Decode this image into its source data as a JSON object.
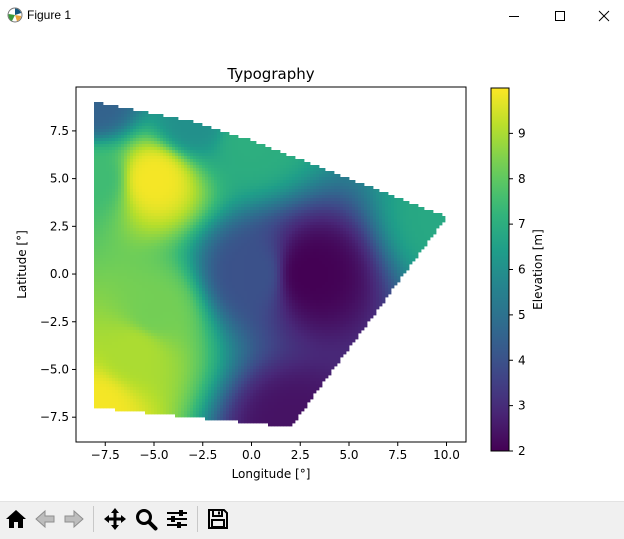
{
  "window": {
    "title": "Figure 1",
    "icon": "matplotlib-icon",
    "controls": [
      "minimize-icon",
      "maximize-icon",
      "close-icon"
    ]
  },
  "toolbar": {
    "buttons": [
      {
        "name": "home-button",
        "icon": "home-icon"
      },
      {
        "name": "back-button",
        "icon": "arrow-left-icon"
      },
      {
        "name": "forward-button",
        "icon": "arrow-right-icon"
      },
      {
        "name": "pan-button",
        "icon": "move-icon"
      },
      {
        "name": "zoom-button",
        "icon": "magnifier-icon"
      },
      {
        "name": "configure-subplots-button",
        "icon": "sliders-icon"
      },
      {
        "name": "save-button",
        "icon": "floppy-disk-icon"
      }
    ]
  },
  "chart_data": {
    "type": "heatmap",
    "subtype": "tripcolor-gouraud",
    "title": "Typography",
    "xlabel": "Longitude [°]",
    "ylabel": "Latitude [°]",
    "xlim": [
      -9,
      11
    ],
    "ylim": [
      -8.8,
      9.8
    ],
    "xticks": [
      -7.5,
      -5.0,
      -2.5,
      0.0,
      2.5,
      5.0,
      7.5,
      10.0
    ],
    "xtick_labels": [
      "−7.5",
      "−5.0",
      "−2.5",
      "0.0",
      "2.5",
      "5.0",
      "7.5",
      "10.0"
    ],
    "yticks": [
      -7.5,
      -5.0,
      -2.5,
      0.0,
      2.5,
      5.0,
      7.5
    ],
    "ytick_labels": [
      "−7.5",
      "−5.0",
      "−2.5",
      "0.0",
      "2.5",
      "5.0",
      "7.5"
    ],
    "grid": false,
    "colormap": "viridis",
    "colorbar": {
      "label": "Elevation [m]",
      "range": [
        2,
        10
      ],
      "ticks": [
        2,
        3,
        4,
        5,
        6,
        7,
        8,
        9
      ],
      "tick_labels": [
        "2",
        "3",
        "4",
        "5",
        "6",
        "7",
        "8",
        "9"
      ]
    },
    "points": [
      {
        "x": -8,
        "y": 9,
        "z": 4.5
      },
      {
        "x": 0,
        "y": 7,
        "z": 7
      },
      {
        "x": 10,
        "y": 3,
        "z": 6.8
      },
      {
        "x": -5,
        "y": 5,
        "z": 9.9
      },
      {
        "x": 0,
        "y": 0,
        "z": 4
      },
      {
        "x": -8,
        "y": -7,
        "z": 9.9
      },
      {
        "x": 2,
        "y": -8,
        "z": 2.4
      },
      {
        "x": -5,
        "y": -2,
        "z": 8.3
      },
      {
        "x": -8,
        "y": 5,
        "z": 7.5
      },
      {
        "x": 3,
        "y": 0,
        "z": 2
      },
      {
        "x": -6,
        "y": -4,
        "z": 9
      },
      {
        "x": -3,
        "y": 8,
        "z": 6
      }
    ]
  }
}
